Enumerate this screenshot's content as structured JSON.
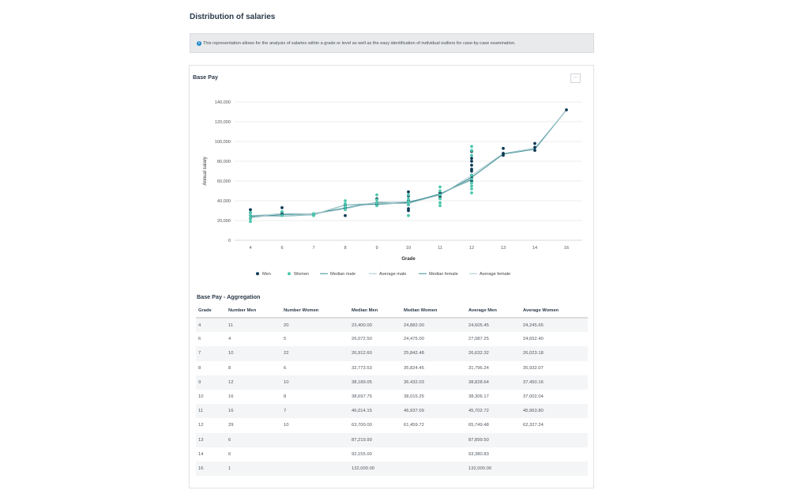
{
  "page": {
    "title": "Distribution of salaries",
    "info_text": "This representation allows for the analysis of salaries within a grade or level as well as the easy identification of individual outliers for case-by-case examination."
  },
  "card": {
    "title": "Base Pay",
    "menu_label": "···",
    "aggregation_title": "Base Pay - Aggregation"
  },
  "colors": {
    "men": "#0d3b55",
    "women": "#4dc7ae",
    "median": "#3a8f94",
    "average": "#a9c8cc",
    "grid": "#e6e8ea"
  },
  "chart_data": {
    "type": "scatter",
    "xlabel": "Grade",
    "ylabel": "Annual salary",
    "categories": [
      "4",
      "6",
      "7",
      "8",
      "9",
      "10",
      "11",
      "12",
      "13",
      "14",
      "16"
    ],
    "yticks": [
      "0",
      "20,000",
      "40,000",
      "60,000",
      "80,000",
      "100,000",
      "120,000",
      "140,000"
    ],
    "ylim": [
      0,
      140000
    ],
    "grid": true,
    "legend_position": "bottom",
    "legend": [
      "Men",
      "Women",
      "Median male",
      "Average male",
      "Median female",
      "Average female"
    ],
    "series": [
      {
        "name": "Men",
        "kind": "points",
        "color": "#0d3b55",
        "points": [
          [
            "4",
            31000
          ],
          [
            "4",
            28000
          ],
          [
            "4",
            25000
          ],
          [
            "4",
            22000
          ],
          [
            "6",
            33000
          ],
          [
            "6",
            28000
          ],
          [
            "6",
            26000
          ],
          [
            "7",
            26000
          ],
          [
            "8",
            25000
          ],
          [
            "8",
            33000
          ],
          [
            "8",
            36000
          ],
          [
            "9",
            42000
          ],
          [
            "9",
            38000
          ],
          [
            "9",
            36000
          ],
          [
            "10",
            49000
          ],
          [
            "10",
            45000
          ],
          [
            "10",
            40000
          ],
          [
            "10",
            36000
          ],
          [
            "10",
            32000
          ],
          [
            "10",
            30000
          ],
          [
            "11",
            48000
          ],
          [
            "11",
            46000
          ],
          [
            "11",
            44000
          ],
          [
            "12",
            90000
          ],
          [
            "12",
            83000
          ],
          [
            "12",
            80000
          ],
          [
            "12",
            76000
          ],
          [
            "12",
            72000
          ],
          [
            "12",
            70000
          ],
          [
            "12",
            66000
          ],
          [
            "12",
            63000
          ],
          [
            "12",
            60000
          ],
          [
            "13",
            93000
          ],
          [
            "13",
            88000
          ],
          [
            "13",
            86000
          ],
          [
            "14",
            98000
          ],
          [
            "14",
            94000
          ],
          [
            "14",
            91000
          ],
          [
            "16",
            132000
          ]
        ]
      },
      {
        "name": "Women",
        "kind": "points",
        "color": "#4dc7ae",
        "points": [
          [
            "4",
            28000
          ],
          [
            "4",
            25000
          ],
          [
            "4",
            22000
          ],
          [
            "4",
            19000
          ],
          [
            "6",
            29000
          ],
          [
            "6",
            25000
          ],
          [
            "7",
            27000
          ],
          [
            "7",
            25000
          ],
          [
            "8",
            40000
          ],
          [
            "8",
            37000
          ],
          [
            "8",
            34000
          ],
          [
            "8",
            31000
          ],
          [
            "9",
            46000
          ],
          [
            "9",
            41000
          ],
          [
            "9",
            38000
          ],
          [
            "9",
            35000
          ],
          [
            "10",
            46000
          ],
          [
            "10",
            42000
          ],
          [
            "10",
            39000
          ],
          [
            "10",
            36000
          ],
          [
            "10",
            25000
          ],
          [
            "11",
            54000
          ],
          [
            "11",
            50000
          ],
          [
            "11",
            46000
          ],
          [
            "11",
            42000
          ],
          [
            "11",
            38000
          ],
          [
            "11",
            35000
          ],
          [
            "12",
            95000
          ],
          [
            "12",
            91000
          ],
          [
            "12",
            86000
          ],
          [
            "12",
            66000
          ],
          [
            "12",
            62000
          ],
          [
            "12",
            58000
          ],
          [
            "12",
            55000
          ],
          [
            "12",
            52000
          ],
          [
            "12",
            48000
          ]
        ]
      },
      {
        "name": "Median male",
        "kind": "line",
        "color": "#3a8f94",
        "values": [
          23400,
          26072.5,
          26912.6,
          32773.53,
          38189.05,
          38697.75,
          46014.15,
          63700,
          87219.99,
          92155,
          132000
        ]
      },
      {
        "name": "Average male",
        "kind": "line",
        "color": "#a9c8cc",
        "values": [
          24605.45,
          27087.25,
          26632.32,
          31796.24,
          38828.64,
          38306.17,
          45702.72,
          65749.48,
          87899.5,
          93380.83,
          132000
        ]
      },
      {
        "name": "Median female",
        "kind": "line",
        "color": "#3a8f94",
        "values": [
          24882,
          24475,
          25842.48,
          35824.45,
          36432.03,
          38015.25,
          46937.09,
          61459.72,
          null,
          null,
          null
        ]
      },
      {
        "name": "Average female",
        "kind": "line",
        "color": "#a9c8cc",
        "values": [
          24245.65,
          24652.4,
          26023.18,
          35932.07,
          37450.16,
          37002.04,
          45963.8,
          62327.24,
          null,
          null,
          null
        ]
      }
    ]
  },
  "table": {
    "headers": [
      "Grade",
      "Number Men",
      "Number Women",
      "Median Men",
      "Median Women",
      "Average Men",
      "Average Women"
    ],
    "rows": [
      [
        "4",
        "11",
        "20",
        "23,400.00",
        "24,882.00",
        "24,605.45",
        "24,245.65"
      ],
      [
        "6",
        "4",
        "5",
        "26,072.50",
        "24,475.00",
        "27,087.25",
        "24,652.40"
      ],
      [
        "7",
        "10",
        "22",
        "26,912.60",
        "25,842.48",
        "26,632.32",
        "26,023.18"
      ],
      [
        "8",
        "8",
        "6",
        "32,773.53",
        "35,824.45",
        "31,796.24",
        "35,932.07"
      ],
      [
        "9",
        "12",
        "10",
        "38,189.05",
        "36,432.03",
        "38,828.64",
        "37,450.16"
      ],
      [
        "10",
        "16",
        "8",
        "38,697.75",
        "38,015.25",
        "38,306.17",
        "37,002.04"
      ],
      [
        "11",
        "16",
        "7",
        "46,014.15",
        "46,937.09",
        "45,702.72",
        "45,963.80"
      ],
      [
        "12",
        "29",
        "10",
        "63,700.00",
        "61,459.72",
        "65,749.48",
        "62,327.24"
      ],
      [
        "13",
        "6",
        "",
        "87,219.99",
        "",
        "87,899.50",
        ""
      ],
      [
        "14",
        "6",
        "",
        "92,155.00",
        "",
        "93,380.83",
        ""
      ],
      [
        "16",
        "1",
        "",
        "132,000.00",
        "",
        "132,000.00",
        ""
      ]
    ]
  }
}
